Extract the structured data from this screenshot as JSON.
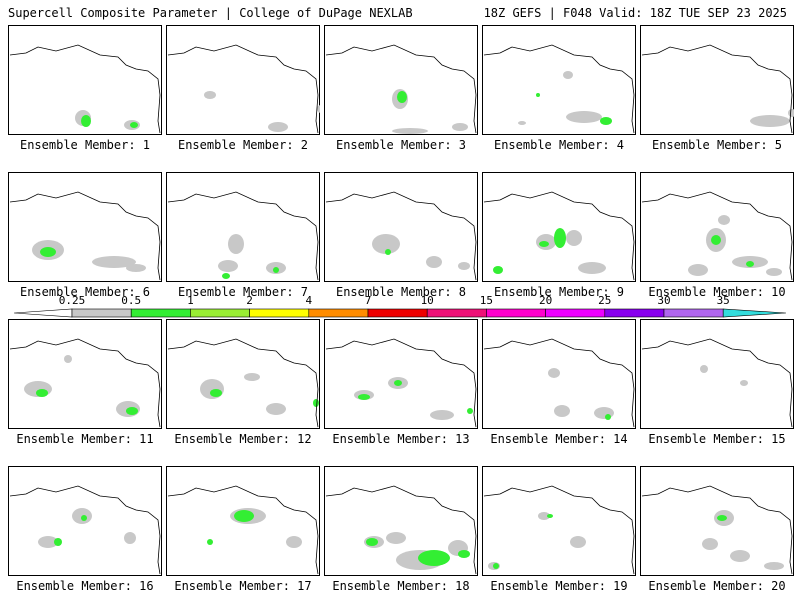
{
  "header": {
    "title_left": "Supercell Composite Parameter | College of DuPage NEXLAB",
    "title_right": "18Z GEFS | F048 Valid: 18Z TUE SEP 23 2025"
  },
  "members": [
    {
      "label": "Ensemble Member: 1"
    },
    {
      "label": "Ensemble Member: 2"
    },
    {
      "label": "Ensemble Member: 3"
    },
    {
      "label": "Ensemble Member: 4"
    },
    {
      "label": "Ensemble Member: 5"
    },
    {
      "label": "Ensemble Member: 6"
    },
    {
      "label": "Ensemble Member: 7"
    },
    {
      "label": "Ensemble Member: 8"
    },
    {
      "label": "Ensemble Member: 9"
    },
    {
      "label": "Ensemble Member: 10"
    },
    {
      "label": "Ensemble Member: 11"
    },
    {
      "label": "Ensemble Member: 12"
    },
    {
      "label": "Ensemble Member: 13"
    },
    {
      "label": "Ensemble Member: 14"
    },
    {
      "label": "Ensemble Member: 15"
    },
    {
      "label": "Ensemble Member: 16"
    },
    {
      "label": "Ensemble Member: 17"
    },
    {
      "label": "Ensemble Member: 18"
    },
    {
      "label": "Ensemble Member: 19"
    },
    {
      "label": "Ensemble Member: 20"
    }
  ],
  "colorbar": {
    "labels": [
      "0.25",
      "0.5",
      "1",
      "2",
      "4",
      "7",
      "10",
      "15",
      "20",
      "25",
      "30",
      "35"
    ],
    "colors": [
      "#c8c8c8",
      "#33ee33",
      "#99ee33",
      "#ffff00",
      "#ff8c00",
      "#ee0000",
      "#ee1177",
      "#ff00cc",
      "#ee00ff",
      "#8800ee",
      "#b066ee",
      "#33dddd"
    ]
  },
  "legend_colors": {
    "low": "#c8c8c8",
    "moderate": "#33ee33"
  }
}
